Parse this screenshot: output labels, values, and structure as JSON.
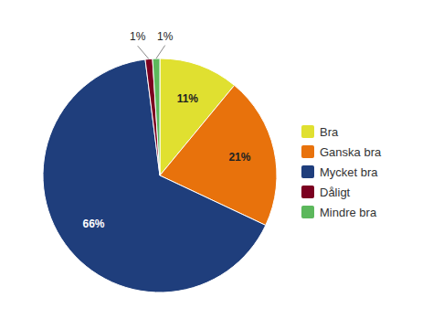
{
  "chart_data": {
    "type": "pie",
    "categories": [
      "Bra",
      "Ganska bra",
      "Mycket bra",
      "Dåligt",
      "Mindre bra"
    ],
    "values": [
      11,
      21,
      66,
      1,
      1
    ],
    "value_labels": [
      "11%",
      "21%",
      "66%",
      "1%",
      "1%"
    ],
    "colors": [
      "#E0E030",
      "#E8720C",
      "#1F3E7C",
      "#7B0020",
      "#5CB85C"
    ],
    "data_labels": true,
    "legend": "right"
  }
}
